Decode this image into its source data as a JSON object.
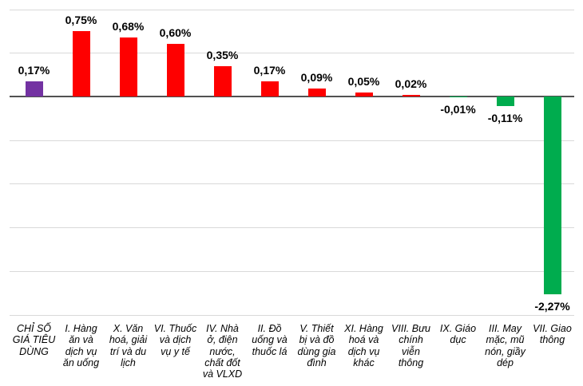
{
  "chart_data": {
    "type": "bar",
    "title": "",
    "xlabel": "",
    "ylabel": "",
    "unit": "%",
    "categories": [
      "CHỈ SỐ\nGIÁ TIÊU\nDÙNG",
      "I. Hàng\năn và\ndịch vụ\năn uống",
      "X. Văn\nhoá, giải\ntrí và du\nlịch",
      "VI. Thuốc\nvà dịch\nvụ y tế",
      "IV. Nhà\nở, điện\nnước,\nchất đốt\nvà VLXD",
      "II. Đồ\nuống và\nthuốc lá",
      "V. Thiết\nbị và đồ\ndùng gia\nđình",
      "XI. Hàng\nhoá và\ndịch vụ\nkhác",
      "VIII. Bưu\nchính\nviễn\nthông",
      "IX. Giáo\ndục",
      "III. May\nmặc, mũ\nnón, giầy\ndép",
      "VII. Giao\nthông"
    ],
    "values": [
      0.17,
      0.75,
      0.68,
      0.6,
      0.35,
      0.17,
      0.09,
      0.05,
      0.02,
      -0.01,
      -0.11,
      -2.27
    ],
    "value_labels": [
      "0,17%",
      "0,75%",
      "0,68%",
      "0,60%",
      "0,35%",
      "0,17%",
      "0,09%",
      "0,05%",
      "0,02%",
      "-0,01%",
      "-0,11%",
      "-2,27%"
    ],
    "bar_colors": [
      "#7332A2",
      "#FE0000",
      "#FE0000",
      "#FE0000",
      "#FE0000",
      "#FE0000",
      "#FE0000",
      "#FE0000",
      "#FE0000",
      "#00AC4E",
      "#00AC4E",
      "#00AC4E"
    ],
    "colors": {
      "cpi_overall": "#7332A2",
      "increase": "#FE0000",
      "decrease": "#00AC4E",
      "gridline": "#D9D9D9",
      "zero_axis": "#515151",
      "label_text": "#000000"
    },
    "ylim": [
      -2.5,
      1.0
    ],
    "grid_step": 0.5,
    "grid": true,
    "legend": false,
    "y_axis_tick_labels_visible": false,
    "data_label_position": "outside-end"
  }
}
